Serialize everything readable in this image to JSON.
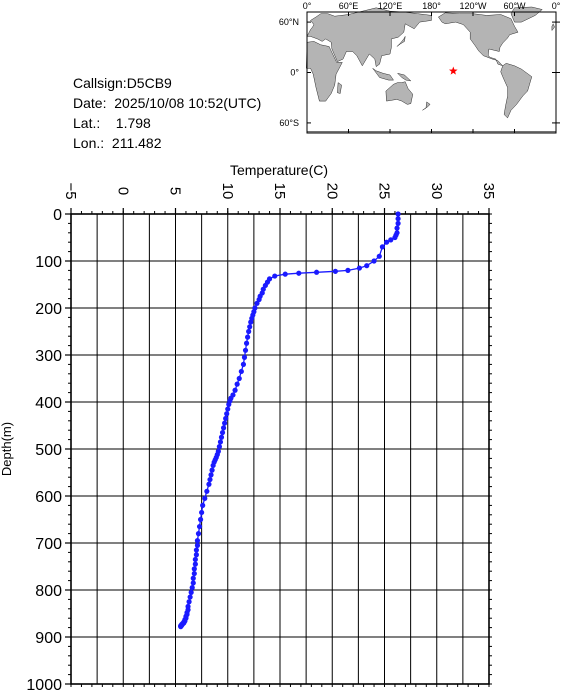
{
  "info": {
    "callsign": "Callsign:D5CB9",
    "date": "Date:  2025/10/08 10:52(UTC)",
    "lat": "Lat.:    1.798",
    "lon": "Lon.:  211.482"
  },
  "map": {
    "lon_labels": [
      "0°",
      "60°E",
      "120°E",
      "180°",
      "120°W",
      "60°W",
      "0°"
    ],
    "lat_labels": [
      "60°N",
      "0°",
      "60°S"
    ],
    "ocean_color": "#ffffff",
    "land_color": "#b4b4b4",
    "marker": {
      "lon": 211.482,
      "lat": 1.798,
      "symbol": "star",
      "color": "#ff0000"
    }
  },
  "chart_data": {
    "type": "line",
    "title": "",
    "xlabel": "Temperature(C)",
    "ylabel": "Depth(m)",
    "xlim": [
      -5,
      35
    ],
    "ylim": [
      0,
      1000
    ],
    "y_inverted": true,
    "x_axis_position": "top",
    "x_ticks": [
      -5,
      0,
      5,
      10,
      15,
      20,
      25,
      30,
      35
    ],
    "y_ticks": [
      0,
      100,
      200,
      300,
      400,
      500,
      600,
      700,
      800,
      900,
      1000
    ],
    "grid": true,
    "line_color": "#1a1aff",
    "series": [
      {
        "x": [
          26.3,
          26.3,
          26.3,
          26.2,
          26.2,
          26.1,
          26.0,
          25.6,
          25.2,
          24.8,
          24.5,
          24.0,
          23.3,
          22.6,
          21.5,
          20.3,
          18.5,
          16.8,
          15.5,
          14.5,
          14.0,
          13.8,
          13.6,
          13.4,
          13.3,
          13.1,
          13.0,
          12.8,
          12.6,
          12.5,
          12.4,
          12.3,
          12.2,
          12.1,
          12.0,
          11.9,
          11.8,
          11.7,
          11.6,
          11.5,
          11.3,
          11.1,
          10.9,
          10.7,
          10.5,
          10.3,
          10.2,
          10.1,
          10.0,
          9.9,
          9.8,
          9.7,
          9.6,
          9.5,
          9.4,
          9.3,
          9.2,
          9.1,
          9.0,
          8.9,
          8.8,
          8.7,
          8.6,
          8.5,
          8.4,
          8.3,
          8.2,
          8.0,
          7.8,
          7.6,
          7.5,
          7.4,
          7.3,
          7.2,
          7.1,
          7.1,
          7.0,
          7.0,
          6.9,
          6.9,
          6.8,
          6.8,
          6.7,
          6.7,
          6.6,
          6.5,
          6.4,
          6.3,
          6.2,
          6.2,
          6.1,
          6.1,
          6.0,
          6.0,
          5.9,
          5.9,
          5.8,
          5.8,
          5.7,
          5.7,
          5.6,
          5.6,
          5.6,
          5.5,
          5.5,
          5.5
        ],
        "y": [
          0,
          10,
          20,
          30,
          40,
          45,
          50,
          55,
          60,
          70,
          90,
          100,
          110,
          115,
          120,
          122,
          124,
          126,
          128,
          132,
          138,
          145,
          152,
          160,
          168,
          175,
          182,
          190,
          200,
          208,
          215,
          222,
          230,
          240,
          250,
          262,
          275,
          290,
          305,
          320,
          335,
          350,
          362,
          375,
          385,
          392,
          398,
          405,
          415,
          425,
          435,
          445,
          455,
          465,
          475,
          485,
          495,
          505,
          512,
          518,
          523,
          528,
          535,
          545,
          555,
          565,
          575,
          590,
          605,
          620,
          635,
          650,
          665,
          680,
          695,
          705,
          715,
          725,
          735,
          745,
          755,
          765,
          775,
          785,
          795,
          805,
          815,
          825,
          835,
          842,
          848,
          852,
          856,
          860,
          863,
          866,
          868,
          870,
          871,
          872,
          873,
          874,
          875,
          876,
          877,
          878
        ]
      }
    ]
  }
}
